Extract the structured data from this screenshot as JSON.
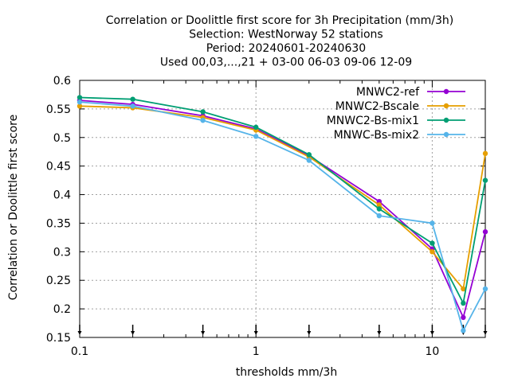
{
  "chart_data": {
    "type": "line",
    "title_lines": [
      "Correlation or Doolittle first score  for 3h Precipitation (mm/3h)",
      "Selection: WestNorway     52 stations",
      "Period: 20240601-20240630",
      "Used 00,03,...,21 + 03-00 06-03 09-06 12-09"
    ],
    "xlabel": "thresholds mm/3h",
    "ylabel": "Correlation or Doolittle first score",
    "x_scale": "log",
    "xlim": [
      0.1,
      20
    ],
    "ylim": [
      0.15,
      0.6
    ],
    "x_ticks": [
      0.1,
      1,
      10
    ],
    "x_tick_labels": [
      "0.1",
      "1",
      "10"
    ],
    "y_ticks": [
      0.15,
      0.2,
      0.25,
      0.3,
      0.35,
      0.4,
      0.45,
      0.5,
      0.55,
      0.6
    ],
    "y_tick_labels": [
      "0.15",
      "0.2",
      "0.25",
      "0.3",
      "0.35",
      "0.4",
      "0.45",
      "0.5",
      "0.55",
      "0.6"
    ],
    "grid": true,
    "legend_position": "top-right",
    "x": [
      0.1,
      0.2,
      0.5,
      1,
      2,
      5,
      10,
      15,
      20
    ],
    "series": [
      {
        "name": "MNWC2-ref",
        "color": "#9400d3",
        "values": [
          0.565,
          0.558,
          0.538,
          0.515,
          0.468,
          0.388,
          0.305,
          0.185,
          0.335
        ]
      },
      {
        "name": "MNWC2-Bscale",
        "color": "#e69f00",
        "values": [
          0.555,
          0.552,
          0.535,
          0.513,
          0.466,
          0.382,
          0.3,
          0.235,
          0.472
        ]
      },
      {
        "name": "MNWC2-Bs-mix1",
        "color": "#009e73",
        "values": [
          0.57,
          0.567,
          0.545,
          0.518,
          0.47,
          0.375,
          0.315,
          0.21,
          0.425
        ]
      },
      {
        "name": "MNWC-Bs-mix2",
        "color": "#56b4e9",
        "values": [
          0.562,
          0.555,
          0.53,
          0.502,
          0.46,
          0.363,
          0.35,
          0.162,
          0.235
        ]
      }
    ]
  }
}
